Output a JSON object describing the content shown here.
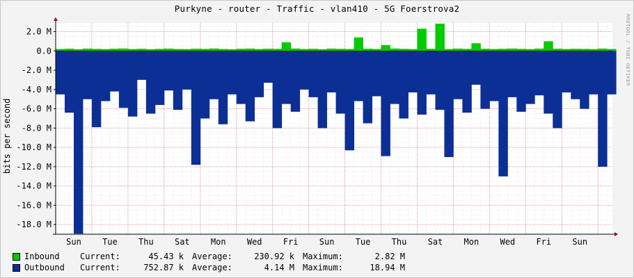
{
  "chart_data": {
    "type": "area",
    "title": "Purkyne - router  - Traffic - vlan410 - 5G Foerstrova2",
    "ylabel": "bits per second",
    "watermark": "RRDTOOL / TOBI OETIKER",
    "ylim": [
      -19000000,
      2900000
    ],
    "y_ticks": [
      {
        "value": 2000000,
        "label": "2.0 M"
      },
      {
        "value": 0,
        "label": "0.0"
      },
      {
        "value": -2000000,
        "label": "-2.0 M"
      },
      {
        "value": -4000000,
        "label": "-4.0 M"
      },
      {
        "value": -6000000,
        "label": "-6.0 M"
      },
      {
        "value": -8000000,
        "label": "-8.0 M"
      },
      {
        "value": -10000000,
        "label": "-10.0 M"
      },
      {
        "value": -12000000,
        "label": "-12.0 M"
      },
      {
        "value": -14000000,
        "label": "-14.0 M"
      },
      {
        "value": -16000000,
        "label": "-16.0 M"
      },
      {
        "value": -18000000,
        "label": "-18.0 M"
      }
    ],
    "x_unit": "days",
    "x_range": [
      0,
      15.4
    ],
    "x_ticks": [
      {
        "value": 0.5,
        "label": "Sun"
      },
      {
        "value": 1.5,
        "label": "Tue"
      },
      {
        "value": 2.5,
        "label": "Thu"
      },
      {
        "value": 3.5,
        "label": "Sat"
      },
      {
        "value": 4.5,
        "label": "Mon"
      },
      {
        "value": 5.5,
        "label": "Wed"
      },
      {
        "value": 6.5,
        "label": "Fri"
      },
      {
        "value": 7.5,
        "label": "Sun"
      },
      {
        "value": 8.5,
        "label": "Tue"
      },
      {
        "value": 9.5,
        "label": "Thu"
      },
      {
        "value": 10.5,
        "label": "Sat"
      },
      {
        "value": 11.5,
        "label": "Mon"
      },
      {
        "value": 12.5,
        "label": "Wed"
      },
      {
        "value": 13.5,
        "label": "Fri"
      },
      {
        "value": 14.5,
        "label": "Sun"
      }
    ],
    "series": [
      {
        "name": "Inbound",
        "color": "#00cc00",
        "x": [
          0.0,
          0.25,
          0.5,
          0.75,
          1.0,
          1.25,
          1.5,
          1.75,
          2.0,
          2.25,
          2.5,
          2.75,
          3.0,
          3.25,
          3.5,
          3.75,
          4.0,
          4.25,
          4.5,
          4.75,
          5.0,
          5.25,
          5.5,
          5.75,
          6.0,
          6.25,
          6.5,
          6.75,
          7.0,
          7.25,
          7.5,
          7.75,
          8.0,
          8.25,
          8.5,
          8.75,
          9.0,
          9.25,
          9.5,
          9.75,
          10.0,
          10.25,
          10.5,
          10.75,
          11.0,
          11.25,
          11.5,
          11.75,
          12.0,
          12.25,
          12.5,
          12.75,
          13.0,
          13.25,
          13.5,
          13.75,
          14.0,
          14.25,
          14.5,
          14.75,
          15.0,
          15.25
        ],
        "values": [
          200000,
          230000,
          180000,
          240000,
          210000,
          190000,
          230000,
          250000,
          200000,
          220000,
          180000,
          210000,
          240000,
          200000,
          190000,
          230000,
          210000,
          250000,
          200000,
          180000,
          220000,
          240000,
          200000,
          230000,
          210000,
          900000,
          250000,
          200000,
          220000,
          180000,
          240000,
          210000,
          200000,
          1400000,
          230000,
          200000,
          600000,
          250000,
          210000,
          190000,
          2300000,
          220000,
          2820000,
          200000,
          240000,
          210000,
          800000,
          230000,
          200000,
          220000,
          250000,
          210000,
          190000,
          240000,
          1000000,
          230000,
          200000,
          220000,
          210000,
          190000,
          240000,
          200000
        ]
      },
      {
        "name": "Outbound",
        "color": "#0c2f96",
        "x": [
          0.0,
          0.25,
          0.5,
          0.75,
          1.0,
          1.25,
          1.5,
          1.75,
          2.0,
          2.25,
          2.5,
          2.75,
          3.0,
          3.25,
          3.5,
          3.75,
          4.0,
          4.25,
          4.5,
          4.75,
          5.0,
          5.25,
          5.5,
          5.75,
          6.0,
          6.25,
          6.5,
          6.75,
          7.0,
          7.25,
          7.5,
          7.75,
          8.0,
          8.25,
          8.5,
          8.75,
          9.0,
          9.25,
          9.5,
          9.75,
          10.0,
          10.25,
          10.5,
          10.75,
          11.0,
          11.25,
          11.5,
          11.75,
          12.0,
          12.25,
          12.5,
          12.75,
          13.0,
          13.25,
          13.5,
          13.75,
          14.0,
          14.25,
          14.5,
          14.75,
          15.0,
          15.25
        ],
        "values": [
          -4500000,
          -6400000,
          -18940000,
          -5000000,
          -7900000,
          -5200000,
          -4200000,
          -5900000,
          -6800000,
          -3000000,
          -6500000,
          -5600000,
          -4100000,
          -6100000,
          -4000000,
          -11800000,
          -7000000,
          -5000000,
          -7600000,
          -4500000,
          -5500000,
          -7300000,
          -4800000,
          -3300000,
          -8000000,
          -5500000,
          -6300000,
          -4000000,
          -4800000,
          -8000000,
          -4300000,
          -6500000,
          -10300000,
          -5200000,
          -7500000,
          -4700000,
          -10900000,
          -5500000,
          -7000000,
          -4300000,
          -6600000,
          -4500000,
          -6100000,
          -11000000,
          -5000000,
          -6400000,
          -3500000,
          -6000000,
          -5200000,
          -13000000,
          -4800000,
          -6300000,
          -5500000,
          -4600000,
          -6500000,
          -8000000,
          -4300000,
          -5000000,
          -6000000,
          -4500000,
          -12000000,
          -4500000
        ]
      }
    ]
  },
  "legend": {
    "inbound": {
      "name": "Inbound",
      "current_label": "Current:",
      "current": "45.43 k",
      "average_label": "Average:",
      "average": "230.92 k",
      "maximum_label": "Maximum:",
      "maximum": "2.82 M"
    },
    "outbound": {
      "name": "Outbound",
      "current_label": "Current:",
      "current": "752.87 k",
      "average_label": "Average:",
      "average": "4.14 M",
      "maximum_label": "Maximum:",
      "maximum": "18.94 M"
    }
  }
}
